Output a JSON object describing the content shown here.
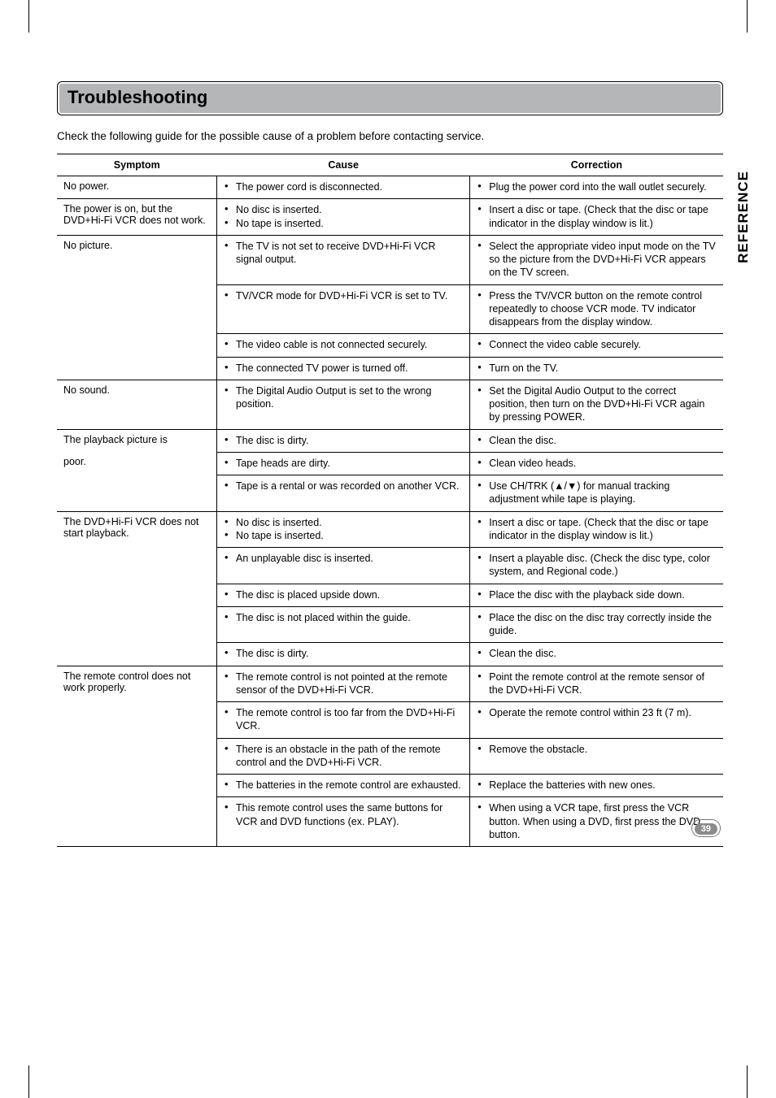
{
  "title": "Troubleshooting",
  "intro": "Check the following guide for the possible cause of a problem before contacting service.",
  "side_tab": "REFERENCE",
  "page_num": "39",
  "headers": {
    "symptom": "Symptom",
    "cause": "Cause",
    "correction": "Correction"
  },
  "rows": [
    {
      "symptom": "No power.",
      "cause": [
        "The power cord is disconnected."
      ],
      "correction": [
        "Plug the power cord into the wall outlet securely."
      ]
    },
    {
      "symptom": "The power is on, but the DVD+Hi-Fi VCR does not work.",
      "cause": [
        "No disc is inserted.",
        "No tape is inserted."
      ],
      "correction": [
        "Insert a disc or tape. (Check that the disc or tape indicator in the display window is lit.)"
      ]
    },
    {
      "symptom": "No picture.",
      "sym_first": true,
      "cause": [
        "The TV is not set to receive DVD+Hi-Fi VCR signal output."
      ],
      "correction": [
        "Select the appropriate video input mode on the TV so the picture from the DVD+Hi-Fi VCR appears on the TV screen."
      ]
    },
    {
      "symptom": "",
      "sym_cont": true,
      "cause": [
        "TV/VCR mode for DVD+Hi-Fi VCR is set to TV."
      ],
      "correction": [
        "Press the TV/VCR button on the remote control repeatedly to choose VCR mode. TV indicator disappears from the display window."
      ]
    },
    {
      "symptom": "",
      "sym_cont": true,
      "cause": [
        "The video cable is not connected securely."
      ],
      "correction": [
        "Connect the video cable securely."
      ]
    },
    {
      "symptom": "",
      "sym_last": true,
      "cause": [
        "The connected TV power is turned off."
      ],
      "correction": [
        "Turn on the TV."
      ]
    },
    {
      "symptom": "No sound.",
      "cause": [
        "The Digital Audio Output is set to the wrong position."
      ],
      "correction": [
        "Set the Digital Audio Output to the correct position, then turn on the DVD+Hi-Fi VCR again by pressing POWER."
      ]
    },
    {
      "symptom": "The playback picture is",
      "sym_first": true,
      "cause": [
        "The disc is dirty."
      ],
      "correction": [
        "Clean the disc."
      ]
    },
    {
      "symptom": "poor.",
      "sym_cont": true,
      "cause": [
        "Tape heads are dirty."
      ],
      "correction": [
        "Clean video heads."
      ]
    },
    {
      "symptom": "",
      "sym_last": true,
      "cause": [
        "Tape is a rental or was recorded on another VCR."
      ],
      "correction": [
        "Use CH/TRK (▲/▼) for manual tracking adjustment while tape is playing."
      ]
    },
    {
      "symptom": "The DVD+Hi-Fi VCR does not start playback.",
      "sym_first": true,
      "cause": [
        "No disc is inserted.",
        "No tape is inserted."
      ],
      "correction": [
        "Insert a disc or tape. (Check that the disc or tape indicator in the display window is lit.)"
      ]
    },
    {
      "symptom": "",
      "sym_cont": true,
      "cause": [
        "An unplayable disc is inserted."
      ],
      "correction": [
        "Insert a playable disc. (Check the disc type, color system, and Regional code.)"
      ]
    },
    {
      "symptom": "",
      "sym_cont": true,
      "cause": [
        "The disc is placed upside down."
      ],
      "correction": [
        "Place the disc with the playback side down."
      ]
    },
    {
      "symptom": "",
      "sym_cont": true,
      "cause": [
        "The disc is not placed within the guide."
      ],
      "correction": [
        "Place the disc on the disc tray correctly inside the guide."
      ]
    },
    {
      "symptom": "",
      "sym_last": true,
      "cause": [
        "The disc is dirty."
      ],
      "correction": [
        "Clean the disc."
      ]
    },
    {
      "symptom": "The remote control does not work properly.",
      "sym_first": true,
      "cause": [
        "The remote control is not pointed at the remote sensor of the DVD+Hi-Fi VCR."
      ],
      "correction": [
        "Point the remote control at the remote sensor of the DVD+Hi-Fi VCR."
      ]
    },
    {
      "symptom": "",
      "sym_cont": true,
      "cause": [
        "The remote control is too far from the DVD+Hi-Fi VCR."
      ],
      "correction": [
        "Operate the remote control within 23 ft (7 m)."
      ]
    },
    {
      "symptom": "",
      "sym_cont": true,
      "cause": [
        "There is an obstacle in the path of the remote control and the DVD+Hi-Fi VCR."
      ],
      "correction": [
        "Remove the obstacle."
      ]
    },
    {
      "symptom": "",
      "sym_cont": true,
      "cause": [
        "The batteries in the remote control are exhausted."
      ],
      "correction": [
        "Replace the batteries with new ones."
      ]
    },
    {
      "symptom": "",
      "sym_last": true,
      "cause": [
        "This remote control uses the same buttons for VCR and DVD functions (ex. PLAY)."
      ],
      "correction": [
        "When using a VCR tape, first press the VCR button. When using a DVD, first press the DVD button."
      ]
    }
  ]
}
